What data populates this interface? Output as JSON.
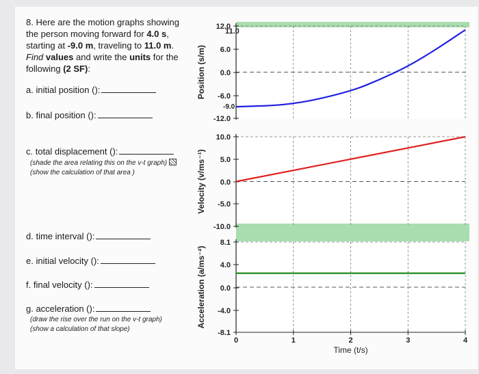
{
  "questions": {
    "intro_a": "8. Here are the motion graphs showing",
    "intro_b": "the person moving forward for ",
    "intro_b_bold": "4.0 s",
    "intro_b_end": ",",
    "intro_c": "starting at ",
    "intro_c_bold1": "-9.0 m",
    "intro_c_mid": ", traveling to ",
    "intro_c_bold2": "11.0 m",
    "intro_c_end": ".",
    "intro_d_italic": "Find",
    "intro_d_bold1": "values",
    "intro_d_mid": "and write the",
    "intro_d_bold2": "units",
    "intro_d_end": "for the",
    "intro_e": "following ",
    "intro_e_bold": "(2 SF)",
    "intro_e_end": ":",
    "a": "a. initial position ():",
    "b": "b. final position ():",
    "c": "c. total displacement ():",
    "c_note1": "(shade the area relating this on the v-t graph)",
    "c_note2": "(show the calculation of that area )",
    "d": "d. time interval ():",
    "e": "e. initial velocity ():",
    "f": "f. final velocity ():",
    "g": "g. acceleration ():",
    "g_note1": "(draw the rise over the run on the v-t graph)",
    "g_note2": "(show a calculation of that slope)"
  },
  "chart_data": [
    {
      "type": "line",
      "ylabel": "Position (s/m)",
      "ylim": [
        -12.0,
        12.0
      ],
      "yticks": [
        "12.0",
        "6.0",
        "0.0",
        "-6.0",
        "-12.0"
      ],
      "annotations": [
        "11.0",
        "-9.0"
      ],
      "xlim": [
        0,
        4
      ],
      "series": [
        {
          "x": [
            0,
            1,
            2,
            2.5,
            3,
            3.5,
            4
          ],
          "y": [
            -9.0,
            -8.5,
            -5.0,
            -2.0,
            1.5,
            6.0,
            11.0
          ],
          "color": "#1f1fe0"
        }
      ],
      "grid": true,
      "shaded_band": "top"
    },
    {
      "type": "line",
      "ylabel": "Velocity (v/ms⁻¹)",
      "ylim": [
        -10.0,
        10.0
      ],
      "yticks": [
        "10.0",
        "5.0",
        "0.0",
        "-5.0",
        "-10.0"
      ],
      "xlim": [
        0,
        4
      ],
      "series": [
        {
          "x": [
            0,
            4
          ],
          "y": [
            0.0,
            10.0
          ],
          "color": "#e01f1f"
        }
      ],
      "grid": true,
      "shaded_band": "bottom"
    },
    {
      "type": "line",
      "ylabel": "Acceleration (a/ms⁻²)",
      "ylim": [
        -8.1,
        8.1
      ],
      "yticks": [
        "8.1",
        "4.0",
        "0.0",
        "-4.0",
        "-8.1"
      ],
      "xlim": [
        0,
        4
      ],
      "xticks": [
        "0",
        "1",
        "2",
        "3",
        "4"
      ],
      "xlabel": "Time (t/s)",
      "series": [
        {
          "x": [
            0,
            4
          ],
          "y": [
            2.5,
            2.5
          ],
          "color": "#1c8a1c"
        }
      ],
      "grid": true,
      "shaded_band": "top"
    }
  ]
}
